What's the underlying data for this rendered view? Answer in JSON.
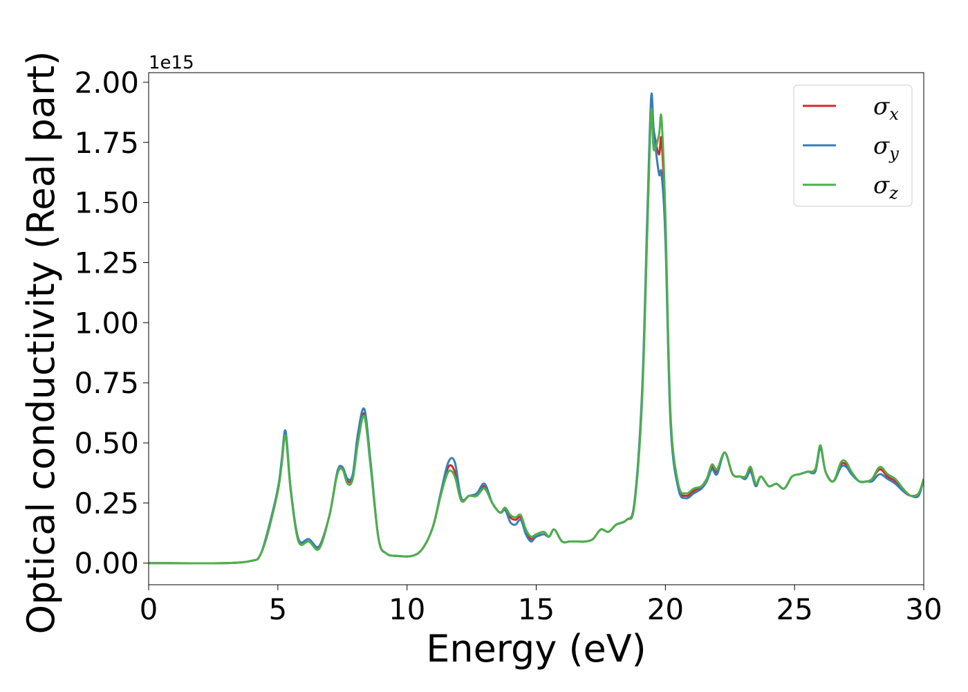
{
  "chart_data": {
    "type": "line",
    "title": "",
    "xlabel": "Energy (eV)",
    "ylabel": "Optical conductivity (Real part)",
    "y_offset_label": "1e15",
    "y_scale": 1000000000000000.0,
    "xlim": [
      0,
      30
    ],
    "ylim": [
      -0.09,
      2.04
    ],
    "x_ticks": [
      0,
      5,
      10,
      15,
      20,
      25,
      30
    ],
    "x_tick_labels": [
      "0",
      "5",
      "10",
      "15",
      "20",
      "25",
      "30"
    ],
    "y_ticks": [
      0.0,
      0.25,
      0.5,
      0.75,
      1.0,
      1.25,
      1.5,
      1.75,
      2.0
    ],
    "y_tick_labels": [
      "0.00",
      "0.25",
      "0.50",
      "0.75",
      "1.00",
      "1.25",
      "1.50",
      "1.75",
      "2.00"
    ],
    "grid": false,
    "legend": {
      "position": "top-right",
      "entries": [
        {
          "symbol": "σ",
          "subscript": "x"
        },
        {
          "symbol": "σ",
          "subscript": "y"
        },
        {
          "symbol": "σ",
          "subscript": "z"
        }
      ]
    },
    "series": [
      {
        "color": "#d62728",
        "x": [
          0,
          3,
          4,
          4.3,
          4.6,
          5.0,
          5.15,
          5.3,
          5.5,
          5.8,
          6.2,
          6.6,
          7.0,
          7.3,
          7.5,
          7.7,
          7.9,
          8.1,
          8.35,
          8.6,
          8.9,
          9.2,
          9.6,
          10.2,
          10.6,
          11.0,
          11.3,
          11.6,
          11.85,
          12.1,
          12.4,
          12.7,
          13.0,
          13.3,
          13.6,
          13.8,
          14.0,
          14.2,
          14.4,
          14.6,
          14.8,
          15.0,
          15.3,
          15.5,
          15.7,
          16.0,
          16.3,
          16.6,
          16.9,
          17.2,
          17.5,
          17.8,
          18.1,
          18.5,
          18.8,
          19.1,
          19.3,
          19.45,
          19.55,
          19.75,
          19.85,
          20.0,
          20.2,
          20.5,
          20.8,
          21.1,
          21.4,
          21.6,
          21.8,
          22.0,
          22.3,
          22.6,
          22.9,
          23.1,
          23.3,
          23.5,
          23.7,
          24.0,
          24.3,
          24.6,
          24.9,
          25.2,
          25.5,
          25.8,
          26.0,
          26.2,
          26.5,
          26.8,
          27.0,
          27.2,
          27.5,
          27.8,
          28.0,
          28.3,
          28.6,
          28.9,
          29.2,
          29.5,
          29.8,
          30.0
        ],
        "y": [
          0.0,
          0.0,
          0.01,
          0.03,
          0.12,
          0.3,
          0.42,
          0.54,
          0.3,
          0.1,
          0.09,
          0.07,
          0.2,
          0.37,
          0.39,
          0.34,
          0.36,
          0.52,
          0.62,
          0.4,
          0.1,
          0.04,
          0.03,
          0.03,
          0.06,
          0.15,
          0.28,
          0.4,
          0.38,
          0.26,
          0.28,
          0.28,
          0.32,
          0.25,
          0.21,
          0.23,
          0.19,
          0.18,
          0.19,
          0.13,
          0.1,
          0.11,
          0.12,
          0.11,
          0.14,
          0.09,
          0.09,
          0.09,
          0.09,
          0.1,
          0.14,
          0.13,
          0.16,
          0.18,
          0.25,
          0.7,
          1.4,
          1.9,
          1.8,
          1.7,
          1.76,
          1.4,
          0.6,
          0.32,
          0.28,
          0.3,
          0.32,
          0.35,
          0.4,
          0.38,
          0.46,
          0.37,
          0.36,
          0.36,
          0.39,
          0.33,
          0.36,
          0.32,
          0.33,
          0.31,
          0.36,
          0.37,
          0.38,
          0.39,
          0.48,
          0.38,
          0.34,
          0.41,
          0.41,
          0.38,
          0.34,
          0.34,
          0.35,
          0.39,
          0.36,
          0.34,
          0.3,
          0.28,
          0.29,
          0.35
        ]
      },
      {
        "color": "#377eb8",
        "x": [
          0,
          3,
          4,
          4.3,
          4.6,
          5.0,
          5.15,
          5.3,
          5.5,
          5.8,
          6.2,
          6.6,
          7.0,
          7.3,
          7.5,
          7.7,
          7.9,
          8.1,
          8.35,
          8.6,
          8.9,
          9.2,
          9.6,
          10.2,
          10.6,
          11.0,
          11.3,
          11.6,
          11.85,
          12.1,
          12.4,
          12.7,
          13.0,
          13.3,
          13.6,
          13.8,
          14.0,
          14.2,
          14.4,
          14.6,
          14.8,
          15.0,
          15.3,
          15.5,
          15.7,
          16.0,
          16.3,
          16.6,
          16.9,
          17.2,
          17.5,
          17.8,
          18.1,
          18.5,
          18.8,
          19.1,
          19.3,
          19.45,
          19.55,
          19.75,
          19.85,
          20.0,
          20.2,
          20.5,
          20.8,
          21.1,
          21.4,
          21.6,
          21.8,
          22.0,
          22.3,
          22.6,
          22.9,
          23.1,
          23.3,
          23.5,
          23.7,
          24.0,
          24.3,
          24.6,
          24.9,
          25.2,
          25.5,
          25.8,
          26.0,
          26.2,
          26.5,
          26.8,
          27.0,
          27.2,
          27.5,
          27.8,
          28.0,
          28.3,
          28.6,
          28.9,
          29.2,
          29.5,
          29.8,
          30.0
        ],
        "y": [
          0.0,
          0.0,
          0.01,
          0.03,
          0.13,
          0.31,
          0.43,
          0.55,
          0.31,
          0.1,
          0.1,
          0.07,
          0.2,
          0.38,
          0.4,
          0.35,
          0.37,
          0.54,
          0.64,
          0.41,
          0.1,
          0.04,
          0.03,
          0.03,
          0.06,
          0.15,
          0.29,
          0.42,
          0.42,
          0.27,
          0.28,
          0.29,
          0.33,
          0.25,
          0.21,
          0.22,
          0.17,
          0.16,
          0.18,
          0.12,
          0.09,
          0.11,
          0.12,
          0.11,
          0.14,
          0.09,
          0.09,
          0.09,
          0.09,
          0.1,
          0.14,
          0.13,
          0.16,
          0.18,
          0.25,
          0.72,
          1.45,
          1.94,
          1.8,
          1.62,
          1.62,
          1.35,
          0.58,
          0.31,
          0.27,
          0.29,
          0.31,
          0.34,
          0.39,
          0.37,
          0.46,
          0.37,
          0.36,
          0.35,
          0.38,
          0.32,
          0.36,
          0.32,
          0.33,
          0.31,
          0.36,
          0.37,
          0.38,
          0.38,
          0.48,
          0.38,
          0.34,
          0.4,
          0.4,
          0.37,
          0.34,
          0.34,
          0.34,
          0.37,
          0.35,
          0.33,
          0.3,
          0.28,
          0.28,
          0.35
        ]
      },
      {
        "color": "#4daf4a",
        "x": [
          0,
          3,
          4,
          4.3,
          4.6,
          5.0,
          5.15,
          5.3,
          5.5,
          5.8,
          6.2,
          6.6,
          7.0,
          7.3,
          7.5,
          7.7,
          7.9,
          8.1,
          8.35,
          8.6,
          8.9,
          9.2,
          9.6,
          10.2,
          10.6,
          11.0,
          11.3,
          11.6,
          11.85,
          12.1,
          12.4,
          12.7,
          13.0,
          13.3,
          13.6,
          13.8,
          14.0,
          14.2,
          14.4,
          14.6,
          14.8,
          15.0,
          15.3,
          15.5,
          15.7,
          16.0,
          16.3,
          16.6,
          16.9,
          17.2,
          17.5,
          17.8,
          18.1,
          18.5,
          18.8,
          19.1,
          19.3,
          19.45,
          19.55,
          19.75,
          19.85,
          20.0,
          20.2,
          20.5,
          20.8,
          21.1,
          21.4,
          21.6,
          21.8,
          22.0,
          22.3,
          22.6,
          22.9,
          23.1,
          23.3,
          23.5,
          23.7,
          24.0,
          24.3,
          24.6,
          24.9,
          25.2,
          25.5,
          25.8,
          26.0,
          26.2,
          26.5,
          26.8,
          27.0,
          27.2,
          27.5,
          27.8,
          28.0,
          28.3,
          28.6,
          28.9,
          29.2,
          29.5,
          29.8,
          30.0
        ],
        "y": [
          0.0,
          0.0,
          0.01,
          0.03,
          0.12,
          0.3,
          0.41,
          0.53,
          0.3,
          0.09,
          0.09,
          0.06,
          0.2,
          0.37,
          0.39,
          0.33,
          0.35,
          0.5,
          0.61,
          0.39,
          0.1,
          0.04,
          0.03,
          0.03,
          0.06,
          0.15,
          0.28,
          0.38,
          0.36,
          0.26,
          0.28,
          0.28,
          0.31,
          0.25,
          0.21,
          0.23,
          0.2,
          0.19,
          0.2,
          0.14,
          0.11,
          0.12,
          0.13,
          0.11,
          0.14,
          0.09,
          0.09,
          0.09,
          0.09,
          0.1,
          0.14,
          0.13,
          0.16,
          0.18,
          0.24,
          0.68,
          1.38,
          1.88,
          1.72,
          1.78,
          1.85,
          1.45,
          0.62,
          0.33,
          0.29,
          0.31,
          0.32,
          0.35,
          0.41,
          0.39,
          0.46,
          0.37,
          0.36,
          0.36,
          0.4,
          0.33,
          0.36,
          0.32,
          0.33,
          0.31,
          0.36,
          0.37,
          0.38,
          0.39,
          0.49,
          0.38,
          0.34,
          0.42,
          0.42,
          0.38,
          0.34,
          0.34,
          0.35,
          0.4,
          0.37,
          0.35,
          0.31,
          0.28,
          0.29,
          0.35
        ]
      }
    ]
  }
}
